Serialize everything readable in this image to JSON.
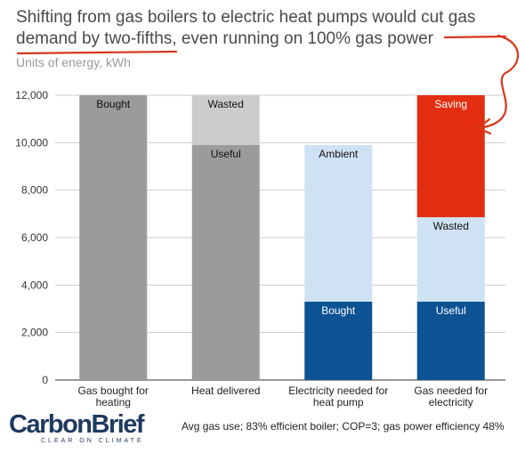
{
  "title": {
    "part1": "Shifting from gas boilers to electric heat pumps would ",
    "highlight1": "cut gas",
    "part2": " ",
    "highlight2": "demand by two-fifths",
    "part3": ", even running on 100% gas power"
  },
  "subtitle": "Units of energy, kWh",
  "note": "Avg gas use; 83% efficient boiler; COP=3; gas power efficiency 48%",
  "logo": {
    "word": "CarbonBrief",
    "tagline": "CLEAR ON CLIMATE"
  },
  "colors": {
    "gray_dark": "#9b9b9b",
    "gray_light": "#cccccc",
    "blue_dark": "#0d5394",
    "blue_light": "#cfe2f3",
    "red": "#e32e12",
    "annotation": "#d8361a",
    "axis_text": "#333333",
    "grid": "#cccccc"
  },
  "chart_data": {
    "type": "bar",
    "stacked": true,
    "categories": [
      "Gas bought for heating",
      "Heat delivered",
      "Electricity needed for heat pump",
      "Gas needed for electricity"
    ],
    "ylim": [
      0,
      12000
    ],
    "yticks": [
      0,
      2000,
      4000,
      6000,
      8000,
      10000,
      12000
    ],
    "ytick_labels": [
      "0",
      "2,000",
      "4,000",
      "6,000",
      "8,000",
      "10,000",
      "12,000"
    ],
    "grid": true,
    "bars": [
      {
        "segments": [
          {
            "label": "Bought",
            "value": 12000,
            "color": "#9b9b9b",
            "text_color": "#111111"
          }
        ]
      },
      {
        "segments": [
          {
            "label": "Useful",
            "value": 9900,
            "color": "#9b9b9b",
            "text_color": "#111111"
          },
          {
            "label": "Wasted",
            "value": 2100,
            "color": "#cccccc",
            "text_color": "#111111"
          }
        ]
      },
      {
        "segments": [
          {
            "label": "Bought",
            "value": 3300,
            "color": "#0d5394",
            "text_color": "#ffffff"
          },
          {
            "label": "Ambient",
            "value": 6600,
            "color": "#cfe2f3",
            "text_color": "#111111"
          }
        ]
      },
      {
        "segments": [
          {
            "label": "Useful",
            "value": 3300,
            "color": "#0d5394",
            "text_color": "#ffffff"
          },
          {
            "label": "Wasted",
            "value": 3560,
            "color": "#cfe2f3",
            "text_color": "#111111"
          },
          {
            "label": "Saving",
            "value": 5140,
            "color": "#e32e12",
            "text_color": "#ffffff"
          }
        ]
      }
    ]
  }
}
